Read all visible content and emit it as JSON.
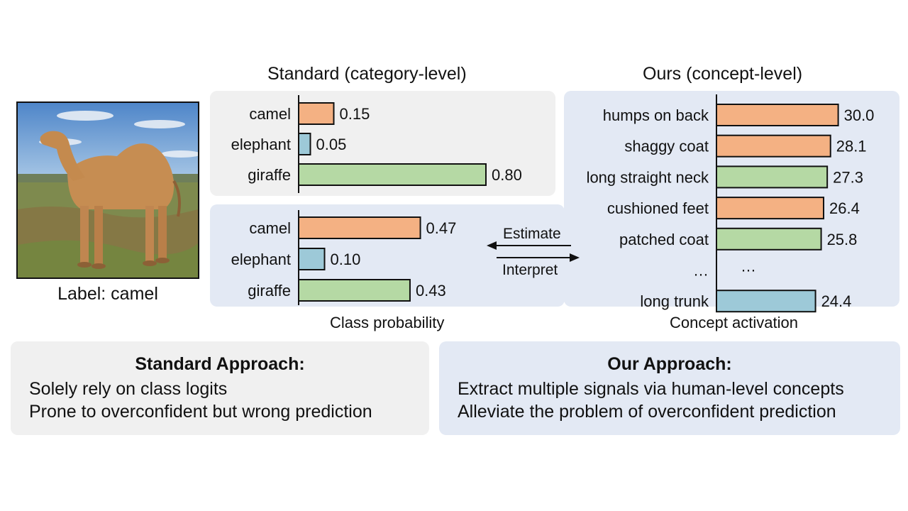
{
  "image": {
    "label": "Label: camel"
  },
  "headings": {
    "standard": "Standard (category-level)",
    "ours": "Ours (concept-level)"
  },
  "colors": {
    "orange": "#f4b183",
    "blue": "#9dc9d8",
    "green": "#b5d9a4",
    "gray_panel": "#f0f0f0",
    "blue_panel": "#e3e9f4"
  },
  "chart_data": [
    {
      "type": "bar",
      "orientation": "horizontal",
      "categories": [
        "camel",
        "elephant",
        "giraffe"
      ],
      "values": [
        0.15,
        0.05,
        0.8
      ],
      "value_labels": [
        "0.15",
        "0.05",
        "0.80"
      ],
      "bar_colors": [
        "orange",
        "blue",
        "green"
      ],
      "xlim": [
        0,
        1
      ]
    },
    {
      "type": "bar",
      "orientation": "horizontal",
      "categories": [
        "camel",
        "elephant",
        "giraffe"
      ],
      "values": [
        0.47,
        0.1,
        0.43
      ],
      "value_labels": [
        "0.47",
        "0.10",
        "0.43"
      ],
      "bar_colors": [
        "orange",
        "blue",
        "green"
      ],
      "xlim": [
        0,
        1
      ]
    },
    {
      "type": "bar",
      "orientation": "horizontal",
      "categories": [
        "humps on back",
        "shaggy coat",
        "long straight neck",
        "cushioned feet",
        "patched coat",
        "…",
        "long trunk"
      ],
      "values": [
        30.0,
        28.1,
        27.3,
        26.4,
        25.8,
        null,
        24.4
      ],
      "value_labels": [
        "30.0",
        "28.1",
        "27.3",
        "26.4",
        "25.8",
        "…",
        "24.4"
      ],
      "bar_colors": [
        "orange",
        "orange",
        "green",
        "orange",
        "green",
        null,
        "blue"
      ],
      "xlim": [
        0,
        34
      ]
    }
  ],
  "captions": {
    "class_probability": "Class probability",
    "concept_activation": "Concept activation"
  },
  "arrows": {
    "estimate": "Estimate",
    "interpret": "Interpret"
  },
  "boxes": {
    "standard": {
      "title": "Standard Approach:",
      "lines": [
        "Solely rely on class logits",
        "Prone to overconfident but wrong prediction"
      ]
    },
    "ours": {
      "title": "Our Approach:",
      "lines": [
        "Extract multiple signals via human-level concepts",
        "Alleviate the problem of overconfident prediction"
      ]
    }
  }
}
